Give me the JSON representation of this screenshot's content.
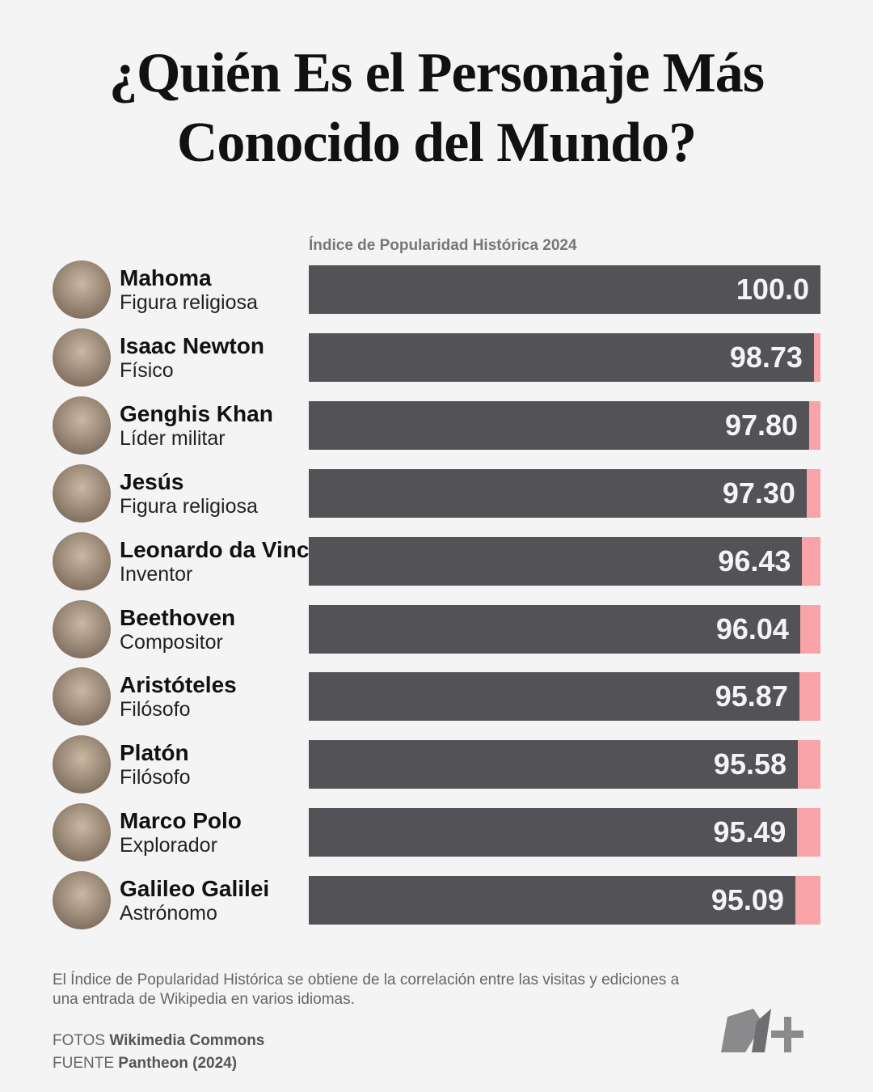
{
  "chart_data": {
    "type": "bar",
    "orientation": "horizontal",
    "title": "¿Quién Es el Personaje Más Conocido del Mundo?",
    "x_label": "Índice de Popularidad Histórica 2024",
    "categories": [
      "Mahoma",
      "Isaac Newton",
      "Genghis Khan",
      "Jesús",
      "Leonardo da Vinci",
      "Beethoven",
      "Aristóteles",
      "Platón",
      "Marco Polo",
      "Galileo Galilei"
    ],
    "roles": [
      "Figura religiosa",
      "Físico",
      "Líder militar",
      "Figura religiosa",
      "Inventor",
      "Compositor",
      "Filósofo",
      "Filósofo",
      "Explorador",
      "Astrónomo"
    ],
    "values": [
      100,
      98.73,
      97.8,
      97.3,
      96.43,
      96.04,
      95.87,
      95.58,
      95.49,
      95.09
    ],
    "value_labels": [
      "100.0",
      "98.73",
      "97.80",
      "97.30",
      "96.43",
      "96.04",
      "95.87",
      "95.58",
      "95.49",
      "95.09"
    ],
    "xlim": [
      0,
      100
    ],
    "color": "#525257",
    "track_color": "#f7a3a8"
  },
  "footnote": "El Índice de Popularidad Histórica se obtiene de la correlación entre las visitas y ediciones a una entrada de Wikipedia en varios idiomas.",
  "credits": [
    {
      "label": "FOTOS",
      "source": "Wikimedia Commons"
    },
    {
      "label": "FUENTE",
      "source": "Pantheon (2024)"
    }
  ]
}
